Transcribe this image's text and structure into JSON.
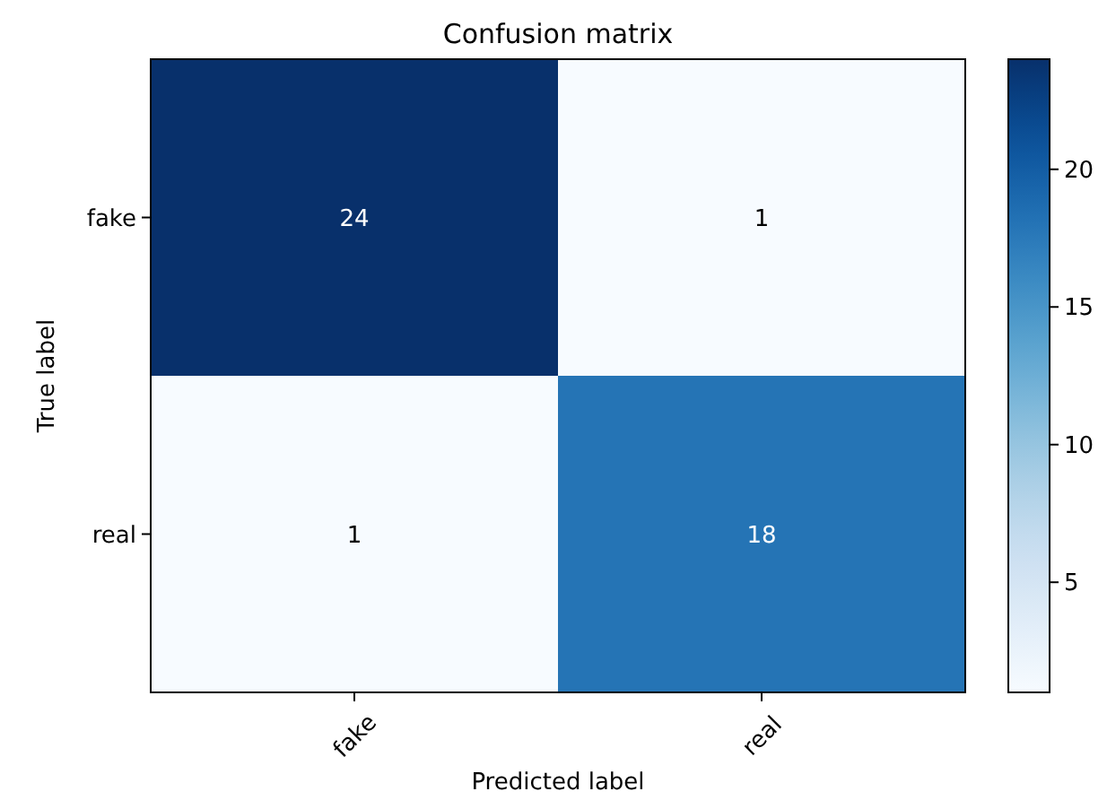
{
  "chart_data": {
    "type": "heatmap",
    "title": "Confusion matrix",
    "xlabel": "Predicted label",
    "ylabel": "True label",
    "categories": [
      "fake",
      "real"
    ],
    "y_categories": [
      "fake",
      "real"
    ],
    "cells": [
      [
        24,
        1
      ],
      [
        1,
        18
      ]
    ],
    "clim": [
      1,
      24
    ],
    "cticks": [
      5,
      10,
      15,
      20
    ],
    "data_labels": true
  }
}
